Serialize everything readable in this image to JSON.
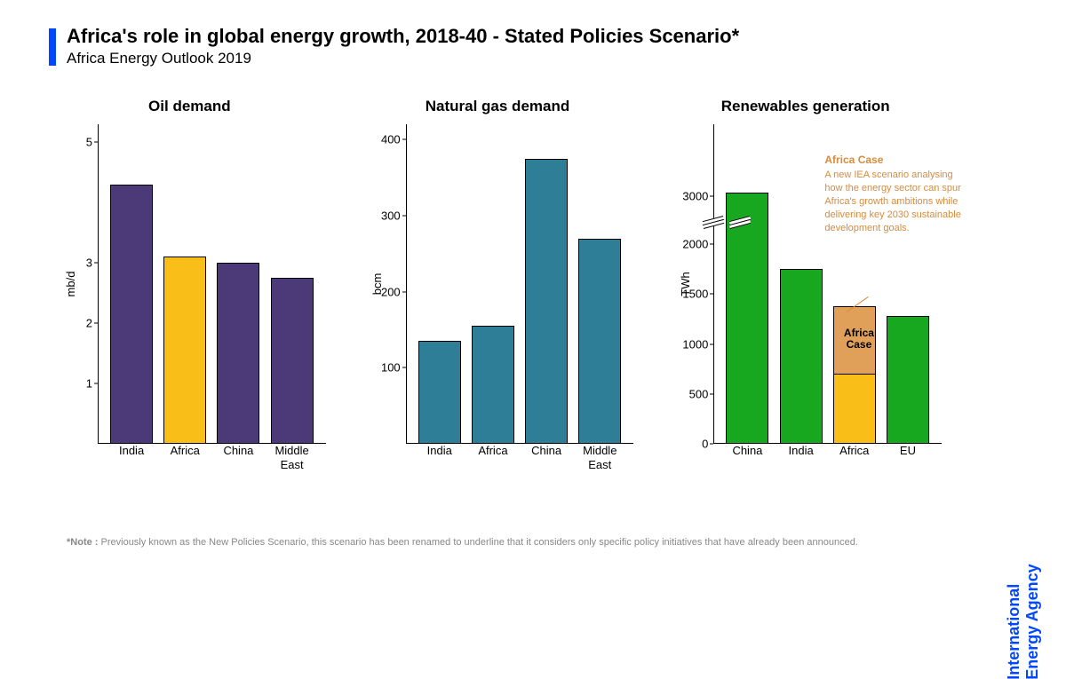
{
  "header": {
    "title": "Africa's role in global energy growth, 2018-40 - Stated Policies Scenario*",
    "subtitle": "Africa Energy Outlook 2019"
  },
  "accent_color": "#0047ff",
  "colors": {
    "purple": "#4b3a77",
    "yellow": "#f9bf18",
    "teal": "#2f7e98",
    "green": "#18a81f",
    "orange": "#e0a05a",
    "axis": "#000000",
    "footnote": "#888888",
    "annotation": "#d88b3a"
  },
  "charts": {
    "oil": {
      "type": "bar",
      "title": "Oil demand",
      "ylabel": "mb/d",
      "ymin": 0,
      "ymax": 5.3,
      "yticks": [
        1,
        2,
        3,
        5
      ],
      "categories": [
        "India",
        "Africa",
        "China",
        "Middle\nEast"
      ],
      "values": [
        4.3,
        3.1,
        3.0,
        2.75
      ],
      "bar_colors": [
        "#4b3a77",
        "#f9bf18",
        "#4b3a77",
        "#4b3a77"
      ]
    },
    "gas": {
      "type": "bar",
      "title": "Natural gas demand",
      "ylabel": "bcm",
      "ymin": 0,
      "ymax": 420,
      "yticks": [
        100,
        200,
        300,
        400
      ],
      "categories": [
        "India",
        "Africa",
        "China",
        "Middle\nEast"
      ],
      "values": [
        135,
        155,
        375,
        270
      ],
      "bar_colors": [
        "#2f7e98",
        "#2f7e98",
        "#2f7e98",
        "#2f7e98"
      ]
    },
    "renewables": {
      "type": "stacked-bar",
      "title": "Renewables generation",
      "ylabel": "TWh",
      "ymin": 0,
      "ymax": 3200,
      "yticks": [
        0,
        500,
        1000,
        1500,
        2000,
        3000
      ],
      "categories": [
        "China",
        "India",
        "Africa",
        "EU"
      ],
      "series": [
        {
          "name": "base",
          "values": [
            3100,
            1750,
            700,
            1280
          ],
          "colors": [
            "#18a81f",
            "#18a81f",
            "#f9bf18",
            "#18a81f"
          ]
        },
        {
          "name": "africa_case",
          "values": [
            0,
            0,
            680,
            0
          ],
          "colors": [
            "",
            "",
            "#e0a05a",
            ""
          ]
        }
      ],
      "africa_case_label": "Africa\nCase",
      "break_after_y": 2200,
      "annotation": {
        "title": "Africa Case",
        "text": "A new IEA scenario analysing how the energy sector can spur Africa's growth ambitions while delivering key 2030 sustainable development goals."
      }
    }
  },
  "footnote": {
    "label": "*Note :",
    "text": " Previously known as the New Policies Scenario, this scenario has been renamed to underline that it considers only specific policy initiatives that have already been announced."
  },
  "brand": {
    "line1": "International",
    "line2": "Energy Agency"
  }
}
